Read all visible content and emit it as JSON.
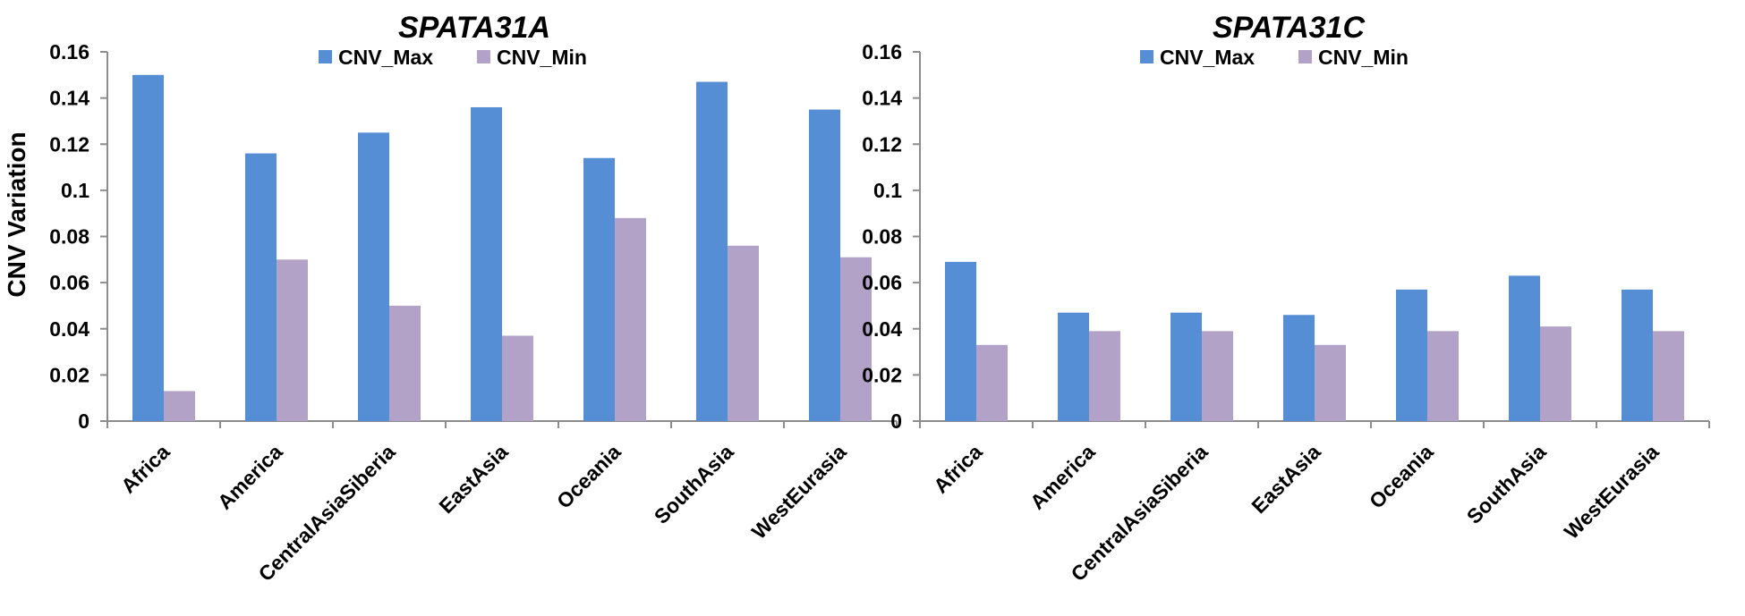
{
  "chart_data": [
    {
      "type": "bar",
      "title": "SPATA31A",
      "ylabel": "CNV Variation",
      "xlabel": "",
      "ylim": [
        0,
        0.16
      ],
      "yticks": [
        "0",
        "0.02",
        "0.04",
        "0.06",
        "0.08",
        "0.1",
        "0.12",
        "0.14",
        "0.16"
      ],
      "categories": [
        "Africa",
        "America",
        "CentralAsiaSiberia",
        "EastAsia",
        "Oceania",
        "SouthAsia",
        "WestEurasia"
      ],
      "legend_position": "top",
      "grid": false,
      "series": [
        {
          "name": "CNV_Max",
          "color": "#558ed5",
          "values": [
            0.15,
            0.116,
            0.125,
            0.136,
            0.114,
            0.147,
            0.135
          ]
        },
        {
          "name": "CNV_Min",
          "color": "#b3a2c7",
          "values": [
            0.013,
            0.07,
            0.05,
            0.037,
            0.088,
            0.076,
            0.071
          ]
        }
      ]
    },
    {
      "type": "bar",
      "title": "SPATA31C",
      "ylabel": "",
      "xlabel": "",
      "ylim": [
        0,
        0.16
      ],
      "yticks": [
        "0",
        "0.02",
        "0.04",
        "0.06",
        "0.08",
        "0.1",
        "0.12",
        "0.14",
        "0.16"
      ],
      "categories": [
        "Africa",
        "America",
        "CentralAsiaSiberia",
        "EastAsia",
        "Oceania",
        "SouthAsia",
        "WestEurasia"
      ],
      "legend_position": "top",
      "grid": false,
      "series": [
        {
          "name": "CNV_Max",
          "color": "#558ed5",
          "values": [
            0.069,
            0.047,
            0.047,
            0.046,
            0.057,
            0.063,
            0.057
          ]
        },
        {
          "name": "CNV_Min",
          "color": "#b3a2c7",
          "values": [
            0.033,
            0.039,
            0.039,
            0.033,
            0.039,
            0.041,
            0.039
          ]
        }
      ]
    }
  ]
}
